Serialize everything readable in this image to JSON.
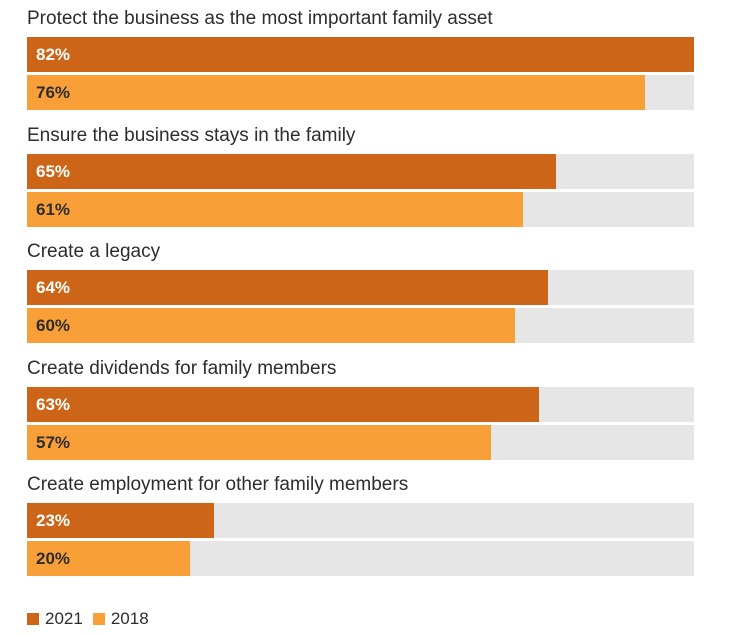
{
  "chart_data": {
    "type": "bar",
    "orientation": "horizontal",
    "categories": [
      "Protect the business as the most important family asset",
      "Ensure the business stays in the family",
      "Create a legacy",
      "Create dividends for family members",
      "Create employment for other family members"
    ],
    "series": [
      {
        "name": "2021",
        "color": "#cc6518",
        "values": [
          82,
          65,
          64,
          63,
          23
        ],
        "labels": [
          "82%",
          "65%",
          "64%",
          "63%",
          "23%"
        ]
      },
      {
        "name": "2018",
        "color": "#f99f37",
        "values": [
          76,
          61,
          60,
          57,
          20
        ],
        "labels": [
          "76%",
          "61%",
          "60%",
          "57%",
          "20%"
        ]
      }
    ],
    "xlim": [
      0,
      82
    ],
    "legend": "bottom-left",
    "grid": false
  },
  "colors": {
    "track": "#e6e6e6",
    "text": "#2d2d2d"
  }
}
